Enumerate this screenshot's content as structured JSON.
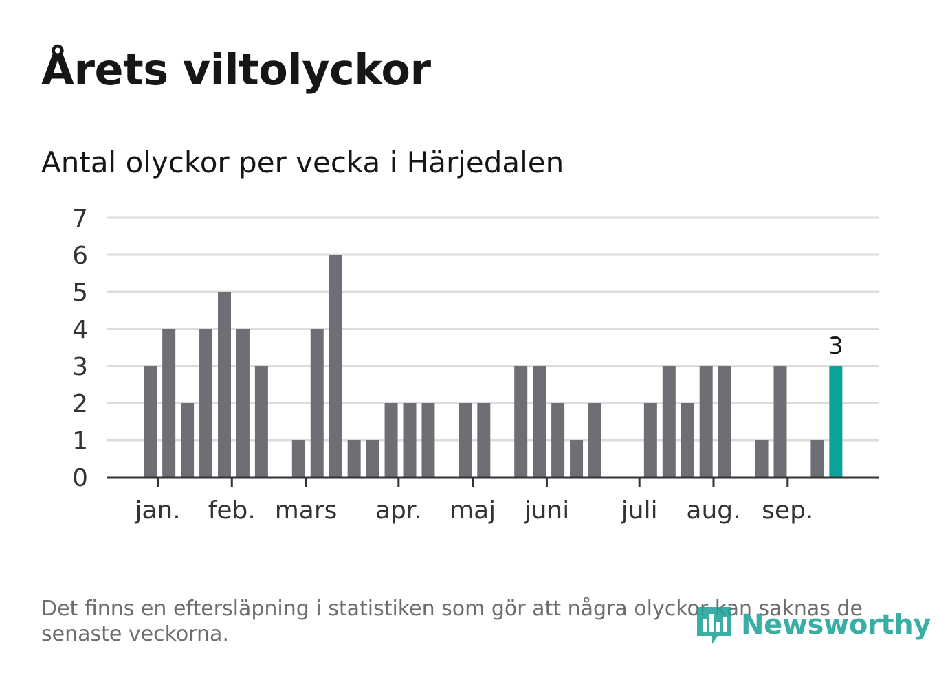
{
  "title": "Årets viltolyckor",
  "subtitle": "Antal olyckor per vecka i Härjedalen",
  "footnote": "Det finns en eftersläpning i statistiken som gör att några olyckor kan saknas de senaste veckorna.",
  "logo": {
    "text": "Newsworthy",
    "icon": "newsworthy-logo-icon"
  },
  "colors": {
    "bar": "#6f6e74",
    "highlight": "#0aa39b",
    "grid": "#dcdcdc",
    "axis": "#333333",
    "text": "#161616",
    "muted": "#6d6d6d"
  },
  "chart_data": {
    "type": "bar",
    "title": "Antal olyckor per vecka i Härjedalen",
    "xlabel": "",
    "ylabel": "",
    "ylim": [
      0,
      7
    ],
    "yticks": [
      0,
      1,
      2,
      3,
      4,
      5,
      6,
      7
    ],
    "x_type": "week",
    "weeks": [
      1,
      2,
      3,
      4,
      5,
      6,
      7,
      8,
      9,
      10,
      11,
      12,
      13,
      14,
      15,
      16,
      17,
      18,
      19,
      20,
      21,
      22,
      23,
      24,
      25,
      26,
      27,
      28,
      29,
      30,
      31,
      32,
      33,
      34,
      35,
      36,
      37,
      38,
      39,
      40,
      41,
      42,
      43,
      44,
      45
    ],
    "values": [
      0,
      0,
      3,
      4,
      2,
      4,
      5,
      4,
      3,
      0,
      1,
      4,
      6,
      1,
      1,
      2,
      2,
      2,
      0,
      2,
      2,
      0,
      3,
      3,
      2,
      1,
      2,
      0,
      0,
      2,
      3,
      2,
      3,
      3,
      0,
      1,
      3,
      0,
      1,
      3,
      null,
      null,
      null,
      null,
      null
    ],
    "month_ticks": [
      {
        "label": "jan.",
        "week": 3.4
      },
      {
        "label": "feb.",
        "week": 7.4
      },
      {
        "label": "mars",
        "week": 11.4
      },
      {
        "label": "apr.",
        "week": 16.4
      },
      {
        "label": "maj",
        "week": 20.4
      },
      {
        "label": "juni",
        "week": 24.4
      },
      {
        "label": "juli",
        "week": 29.4
      },
      {
        "label": "aug.",
        "week": 33.4
      },
      {
        "label": "sep.",
        "week": 37.4
      }
    ],
    "highlight": {
      "week": 40,
      "value": 3,
      "label": "3"
    },
    "grid": true,
    "legend": "none"
  }
}
